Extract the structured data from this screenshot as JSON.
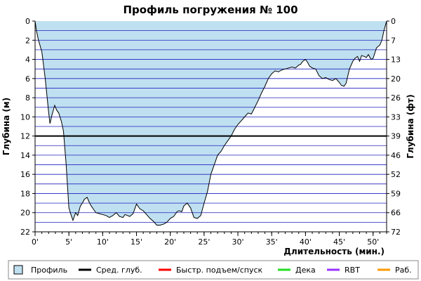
{
  "chart_data": {
    "type": "area",
    "title": "Профиль погружения № 100",
    "xlabel": "Длительность (мин.)",
    "ylabel_left": "Глубина (м)",
    "ylabel_right": "Глубина (фт)",
    "xlim": [
      0,
      52
    ],
    "ylim": [
      0,
      22
    ],
    "y_inverted": true,
    "grid": true,
    "x_ticks": [
      "0'",
      "5'",
      "10'",
      "15'",
      "20'",
      "25'",
      "30'",
      "35'",
      "40'",
      "45'",
      "50'"
    ],
    "x_tick_values": [
      0,
      5,
      10,
      15,
      20,
      25,
      30,
      35,
      40,
      45,
      50
    ],
    "y_ticks_left": [
      "0",
      "2",
      "4",
      "6",
      "8",
      "10",
      "12",
      "14",
      "16",
      "18",
      "20",
      "22"
    ],
    "y_tick_values_left": [
      0,
      2,
      4,
      6,
      8,
      10,
      12,
      14,
      16,
      18,
      20,
      22
    ],
    "y_ticks_right": [
      "0",
      "7",
      "13",
      "20",
      "26",
      "33",
      "39",
      "46",
      "52",
      "59",
      "66",
      "72"
    ],
    "avg_depth": 12.0,
    "colors": {
      "profile_fill": "#bfe0f0",
      "profile_line": "#000000",
      "avg_line": "#000000",
      "grid": "#2020c0",
      "fast": "#ff0000",
      "deco": "#22dd22",
      "rbt": "#9933ff",
      "work": "#ff9900"
    },
    "profile": {
      "x": [
        0,
        0.2,
        0.5,
        1.0,
        1.5,
        2.0,
        2.2,
        2.5,
        2.9,
        3.2,
        3.5,
        3.9,
        4.2,
        4.6,
        5.0,
        5.3,
        5.6,
        6.0,
        6.3,
        6.7,
        7.0,
        7.3,
        7.7,
        8.0,
        8.3,
        8.7,
        9.0,
        9.5,
        10.0,
        10.5,
        11.0,
        11.5,
        12.0,
        12.5,
        13.0,
        13.3,
        13.7,
        14.0,
        14.5,
        14.8,
        15.0,
        15.5,
        16.0,
        16.5,
        17.0,
        17.5,
        18.0,
        18.5,
        19.0,
        19.5,
        20.0,
        20.5,
        21.0,
        21.3,
        21.7,
        22.0,
        22.5,
        23.0,
        23.5,
        24.0,
        24.5,
        25.0,
        25.5,
        26.0,
        26.5,
        27.0,
        27.5,
        28.0,
        28.5,
        29.0,
        29.5,
        30.0,
        30.5,
        31.0,
        31.5,
        32.0,
        32.5,
        33.0,
        33.5,
        34.0,
        34.5,
        35.0,
        35.5,
        36.0,
        36.5,
        37.0,
        37.5,
        38.0,
        38.5,
        39.0,
        39.3,
        39.6,
        40.0,
        40.3,
        40.6,
        41.0,
        41.5,
        42.0,
        42.5,
        43.0,
        43.5,
        44.0,
        44.5,
        45.0,
        45.3,
        45.7,
        46.0,
        46.5,
        47.0,
        47.3,
        47.7,
        48.0,
        48.3,
        48.7,
        49.0,
        49.3,
        49.7,
        50.0,
        50.5,
        51.0,
        51.3,
        51.6,
        52.0
      ],
      "y": [
        0,
        1.0,
        2.0,
        3.2,
        6.0,
        9.5,
        10.7,
        9.8,
        8.8,
        9.3,
        9.6,
        10.5,
        11.5,
        15.0,
        19.5,
        20.2,
        20.8,
        20.0,
        20.3,
        19.3,
        19.0,
        18.6,
        18.4,
        18.9,
        19.3,
        19.7,
        20.0,
        20.1,
        20.2,
        20.3,
        20.5,
        20.3,
        20.0,
        20.4,
        20.5,
        20.2,
        20.3,
        20.4,
        20.1,
        19.5,
        19.1,
        19.6,
        19.8,
        20.2,
        20.6,
        20.9,
        21.3,
        21.3,
        21.2,
        21.0,
        20.6,
        20.4,
        19.9,
        19.8,
        19.9,
        19.3,
        19.0,
        19.5,
        20.5,
        20.6,
        20.3,
        19.0,
        17.8,
        16.0,
        15.0,
        14.0,
        13.6,
        13.0,
        12.5,
        12.0,
        11.3,
        10.8,
        10.4,
        10.0,
        9.6,
        9.7,
        9.0,
        8.3,
        7.5,
        6.8,
        6.0,
        5.5,
        5.2,
        5.3,
        5.1,
        5.0,
        4.9,
        4.8,
        4.9,
        4.6,
        4.5,
        4.2,
        4.0,
        4.3,
        4.7,
        4.9,
        5.0,
        5.7,
        6.0,
        5.9,
        6.1,
        6.2,
        6.0,
        6.4,
        6.7,
        6.8,
        6.5,
        5.0,
        4.2,
        3.9,
        3.7,
        4.2,
        3.6,
        3.7,
        3.8,
        3.5,
        4.0,
        3.9,
        2.8,
        2.5,
        2.0,
        1.0,
        0
      ]
    },
    "legend": [
      {
        "label": "Профиль",
        "type": "box"
      },
      {
        "label": "Сред. глуб.",
        "type": "line",
        "color": "#000000"
      },
      {
        "label": "Быстр. подъем/спуск",
        "type": "line",
        "color": "#ff0000"
      },
      {
        "label": "Дека",
        "type": "line",
        "color": "#22dd22"
      },
      {
        "label": "RBT",
        "type": "line",
        "color": "#9933ff"
      },
      {
        "label": "Раб.",
        "type": "line",
        "color": "#ff9900"
      }
    ]
  }
}
